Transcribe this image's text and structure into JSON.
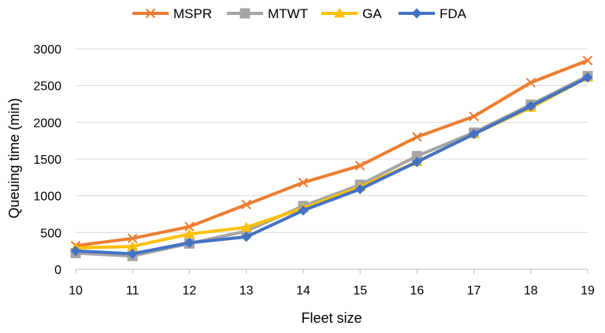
{
  "chart_data": {
    "type": "line",
    "title": "",
    "xlabel": "Fleet size",
    "ylabel": "Queuing time (min)",
    "x": [
      10,
      11,
      12,
      13,
      14,
      15,
      16,
      17,
      18,
      19
    ],
    "ylim": [
      0,
      3000
    ],
    "yticks": [
      0,
      500,
      1000,
      1500,
      2000,
      2500,
      3000
    ],
    "grid": "horizontal",
    "legend_position": "top",
    "series": [
      {
        "name": "MSPR",
        "color": "#ED7D31",
        "marker": "x",
        "values": [
          320,
          420,
          580,
          880,
          1180,
          1410,
          1800,
          2080,
          2540,
          2840
        ]
      },
      {
        "name": "MTWT",
        "color": "#A5A5A5",
        "marker": "square",
        "values": [
          220,
          180,
          350,
          520,
          860,
          1150,
          1540,
          1860,
          2240,
          2630
        ]
      },
      {
        "name": "GA",
        "color": "#FFC000",
        "marker": "triangle",
        "values": [
          290,
          310,
          480,
          570,
          830,
          1120,
          1460,
          1840,
          2200,
          2610
        ]
      },
      {
        "name": "FDA",
        "color": "#4472C4",
        "marker": "diamond",
        "values": [
          250,
          210,
          360,
          440,
          800,
          1090,
          1460,
          1840,
          2220,
          2610
        ]
      }
    ]
  }
}
